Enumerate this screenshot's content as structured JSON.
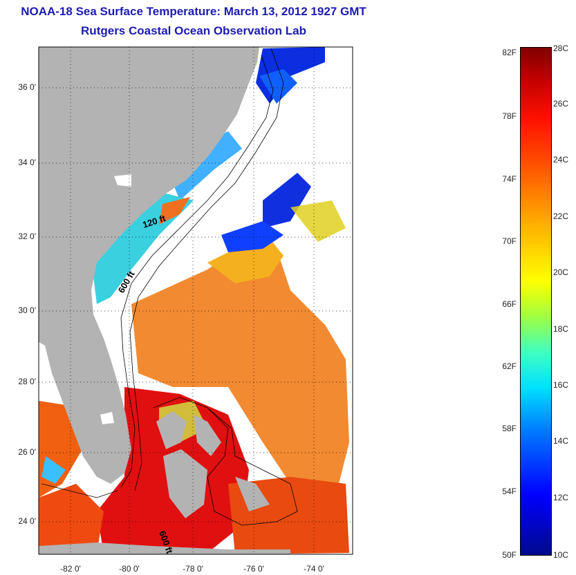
{
  "header": {
    "title": "NOAA-18 Sea Surface Temperature:  March 13, 2012 1927 GMT",
    "subtitle": "Rutgers Coastal Ocean Observation Lab"
  },
  "map": {
    "lat_labels": [
      "36 0'",
      "34 0'",
      "32 0'",
      "30 0'",
      "28 0'",
      "26 0'",
      "24 0'"
    ],
    "lon_labels": [
      "-82 0'",
      "-80 0'",
      "-78 0'",
      "-76 0'",
      "-74 0'"
    ],
    "contour_labels": [
      "120 ft",
      "600 ft",
      "600 ft"
    ],
    "colors": {
      "land": "#b3b3b3",
      "cloud": "#ffffff"
    }
  },
  "colorbar": {
    "fahrenheit": [
      "82F",
      "78F",
      "74F",
      "70F",
      "66F",
      "62F",
      "58F",
      "54F",
      "50F"
    ],
    "celsius": [
      "28C",
      "26C",
      "24C",
      "22C",
      "20C",
      "18C",
      "16C",
      "14C",
      "12C",
      "10C"
    ],
    "range_c": [
      10,
      28
    ]
  }
}
